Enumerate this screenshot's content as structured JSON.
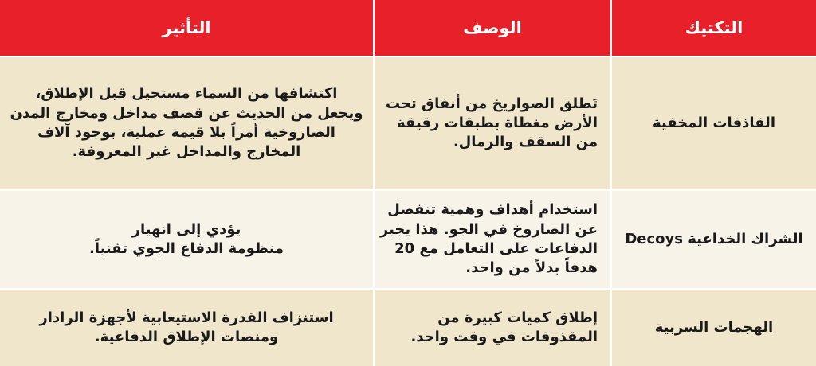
{
  "table": {
    "header": [
      "التكتيك",
      "الوصف",
      "التأثير"
    ],
    "rows": [
      {
        "tactic": "القاذفات المخفية",
        "description": [
          "تَطلق الصواريخ من أنفاق تحت",
          "الأرض مغطاة بطبقات رقيقة",
          "من السقف والرمال."
        ],
        "effect": [
          "اكتشافها من السماء مستحيل قبل الإطلاق،",
          "ويجعل من الحديث عن قصف مداخل ومخارج المدن",
          "الصاروخية أمراً بلا قيمة عملية، بوجود آلاف",
          "المخارج والمداخل غير المعروفة."
        ]
      },
      {
        "tactic": "الشراك الخداعية Decoys",
        "description": [
          "استخدام أهداف وهمية تنفصل",
          "عن الصاروخ في الجو. هذا يجبر",
          "الدفاعات على التعامل مع 20",
          "هدفاً بدلاً من واحد."
        ],
        "effect": [
          "يؤدي إلى انهيار",
          "منظومة الدفاع الجوي تقنياً."
        ]
      },
      {
        "tactic": "الهجمات السربية",
        "description": [
          "إطلاق كميات كبيرة من",
          "المقذوفات في وقت واحد."
        ],
        "effect": [
          "استنزاف القدرة الاستيعابية لأجهزة الرادار",
          "ومنصات الإطلاق الدفاعية."
        ]
      }
    ]
  }
}
